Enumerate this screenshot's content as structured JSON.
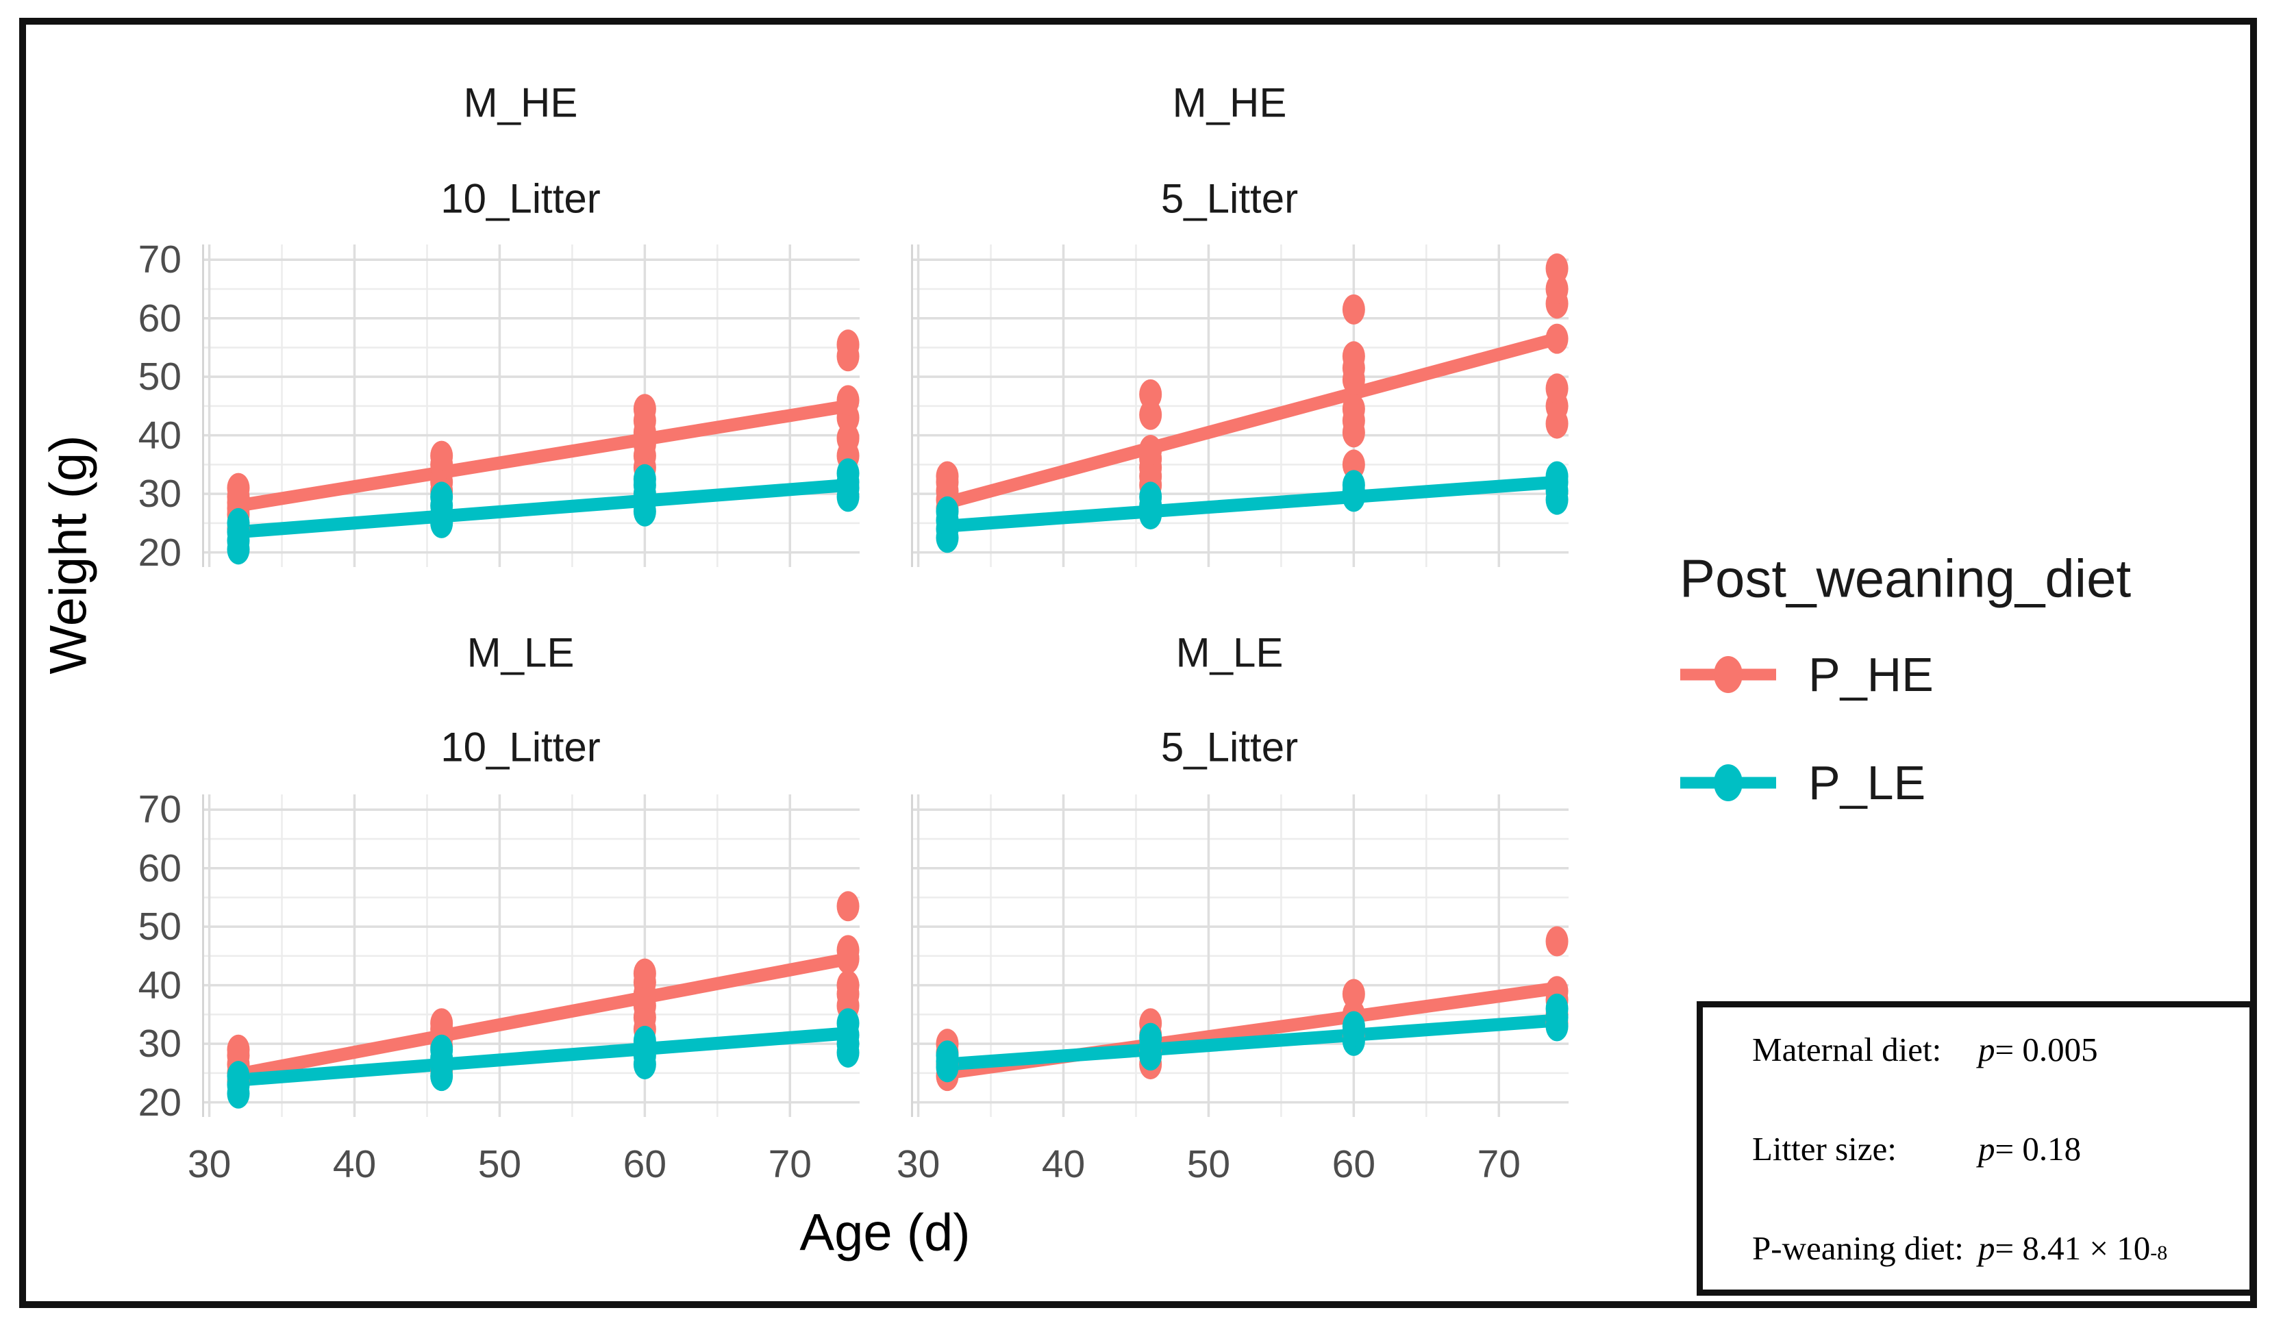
{
  "figure": {
    "x_axis_title": "Age (d)",
    "y_axis_title": "Weight (g)",
    "legend": {
      "title": "Post_weaning_diet",
      "entries": [
        {
          "label": "P_HE",
          "color": "#F8766D"
        },
        {
          "label": "P_LE",
          "color": "#00BFC4"
        }
      ]
    },
    "stats_box": {
      "lines": [
        {
          "label": "Maternal diet: ",
          "p": "p",
          "value": " = 0.005",
          "sup": ""
        },
        {
          "label": "Litter size: ",
          "p": "p",
          "value": " = 0.18",
          "sup": ""
        },
        {
          "label": "P-weaning diet: ",
          "p": "p",
          "value": " = 8.41 × 10",
          "sup": "-8"
        }
      ]
    }
  },
  "chart_data": {
    "type": "scatter",
    "xlabel": "Age (d)",
    "ylabel": "Weight (g)",
    "xlim": [
      29.5,
      74.8
    ],
    "ylim": [
      17.5,
      72.6
    ],
    "x_ticks": [
      30,
      40,
      50,
      60,
      70
    ],
    "y_ticks": [
      20,
      30,
      40,
      50,
      60,
      70
    ],
    "x_minor": [
      35,
      45,
      55,
      65
    ],
    "y_minor": [
      25,
      35,
      45,
      55,
      65
    ],
    "x_values": [
      32,
      46,
      60,
      74
    ],
    "grid": true,
    "legend_position": "right",
    "series_colors": {
      "P_HE": "#F8766D",
      "P_LE": "#00BFC4"
    },
    "panels": [
      {
        "row_label": "M_HE",
        "col_label": "10_Litter",
        "series": [
          {
            "name": "P_HE",
            "points": [
              [
                32,
                24
              ],
              [
                32,
                26.5
              ],
              [
                32,
                27.5
              ],
              [
                32,
                28.5
              ],
              [
                32,
                29.5
              ],
              [
                32,
                31
              ],
              [
                46,
                30.5
              ],
              [
                46,
                32
              ],
              [
                46,
                33.5
              ],
              [
                46,
                35
              ],
              [
                46,
                36.5
              ],
              [
                60,
                34.5
              ],
              [
                60,
                36.5
              ],
              [
                60,
                38.5
              ],
              [
                60,
                40.5
              ],
              [
                60,
                42.5
              ],
              [
                60,
                44.5
              ],
              [
                74,
                36.5
              ],
              [
                74,
                39.5
              ],
              [
                74,
                43
              ],
              [
                74,
                46
              ],
              [
                74,
                53.5
              ],
              [
                74,
                55.5
              ]
            ],
            "fit_line": [
              [
                32,
                28
              ],
              [
                74,
                45
              ]
            ]
          },
          {
            "name": "P_LE",
            "points": [
              [
                32,
                20.5
              ],
              [
                32,
                22
              ],
              [
                32,
                23.5
              ],
              [
                32,
                25
              ],
              [
                46,
                25
              ],
              [
                46,
                26.5
              ],
              [
                46,
                28
              ],
              [
                46,
                29.5
              ],
              [
                60,
                27
              ],
              [
                60,
                28.5
              ],
              [
                60,
                30
              ],
              [
                60,
                31.5
              ],
              [
                60,
                32.5
              ],
              [
                74,
                29.5
              ],
              [
                74,
                31
              ],
              [
                74,
                32
              ],
              [
                74,
                33.5
              ]
            ],
            "fit_line": [
              [
                32,
                23.5
              ],
              [
                74,
                31.5
              ]
            ]
          }
        ]
      },
      {
        "row_label": "M_HE",
        "col_label": "5_Litter",
        "series": [
          {
            "name": "P_HE",
            "points": [
              [
                32,
                27.5
              ],
              [
                32,
                29
              ],
              [
                32,
                30.5
              ],
              [
                32,
                32
              ],
              [
                32,
                33
              ],
              [
                46,
                31.5
              ],
              [
                46,
                33
              ],
              [
                46,
                34.5
              ],
              [
                46,
                36
              ],
              [
                46,
                37.5
              ],
              [
                46,
                43.5
              ],
              [
                46,
                47
              ],
              [
                60,
                35
              ],
              [
                60,
                40.5
              ],
              [
                60,
                42.5
              ],
              [
                60,
                44.5
              ],
              [
                60,
                49.5
              ],
              [
                60,
                51.5
              ],
              [
                60,
                53.5
              ],
              [
                60,
                61.5
              ],
              [
                74,
                42
              ],
              [
                74,
                45
              ],
              [
                74,
                48
              ],
              [
                74,
                56.5
              ],
              [
                74,
                62.5
              ],
              [
                74,
                65
              ],
              [
                74,
                68.5
              ]
            ],
            "fit_line": [
              [
                32,
                28.5
              ],
              [
                74,
                56.5
              ]
            ]
          },
          {
            "name": "P_LE",
            "points": [
              [
                32,
                22.5
              ],
              [
                32,
                24
              ],
              [
                32,
                25.5
              ],
              [
                32,
                27
              ],
              [
                46,
                26.5
              ],
              [
                46,
                28
              ],
              [
                46,
                29.5
              ],
              [
                60,
                29.5
              ],
              [
                60,
                30.5
              ],
              [
                60,
                31.5
              ],
              [
                74,
                29
              ],
              [
                74,
                30.5
              ],
              [
                74,
                32
              ],
              [
                74,
                33
              ]
            ],
            "fit_line": [
              [
                32,
                24.5
              ],
              [
                74,
                32
              ]
            ]
          }
        ]
      },
      {
        "row_label": "M_LE",
        "col_label": "10_Litter",
        "series": [
          {
            "name": "P_HE",
            "points": [
              [
                32,
                23.5
              ],
              [
                32,
                25
              ],
              [
                32,
                26.5
              ],
              [
                32,
                28
              ],
              [
                32,
                29
              ],
              [
                46,
                25.5
              ],
              [
                46,
                29.5
              ],
              [
                46,
                31
              ],
              [
                46,
                32.5
              ],
              [
                46,
                33.5
              ],
              [
                60,
                32.5
              ],
              [
                60,
                34.5
              ],
              [
                60,
                36.5
              ],
              [
                60,
                38.5
              ],
              [
                60,
                40.5
              ],
              [
                60,
                42
              ],
              [
                74,
                36.5
              ],
              [
                74,
                38.5
              ],
              [
                74,
                40
              ],
              [
                74,
                44.5
              ],
              [
                74,
                46
              ],
              [
                74,
                53.5
              ]
            ],
            "fit_line": [
              [
                32,
                24.8
              ],
              [
                74,
                44.5
              ]
            ]
          },
          {
            "name": "P_LE",
            "points": [
              [
                32,
                21.5
              ],
              [
                32,
                23
              ],
              [
                32,
                24.5
              ],
              [
                46,
                24.5
              ],
              [
                46,
                26
              ],
              [
                46,
                27.5
              ],
              [
                46,
                29
              ],
              [
                60,
                26.5
              ],
              [
                60,
                28
              ],
              [
                60,
                29.5
              ],
              [
                60,
                30.5
              ],
              [
                74,
                28.5
              ],
              [
                74,
                30
              ],
              [
                74,
                31.5
              ],
              [
                74,
                33.5
              ]
            ],
            "fit_line": [
              [
                32,
                23.8
              ],
              [
                74,
                31.8
              ]
            ]
          }
        ]
      },
      {
        "row_label": "M_LE",
        "col_label": "5_Litter",
        "series": [
          {
            "name": "P_HE",
            "points": [
              [
                32,
                24.5
              ],
              [
                32,
                26.5
              ],
              [
                32,
                28.5
              ],
              [
                32,
                30
              ],
              [
                46,
                26.5
              ],
              [
                46,
                29
              ],
              [
                46,
                31.5
              ],
              [
                46,
                33.5
              ],
              [
                60,
                31.5
              ],
              [
                60,
                33
              ],
              [
                60,
                35
              ],
              [
                60,
                38.5
              ],
              [
                74,
                33.5
              ],
              [
                74,
                35
              ],
              [
                74,
                37.5
              ],
              [
                74,
                39
              ],
              [
                74,
                47.5
              ]
            ],
            "fit_line": [
              [
                32,
                25
              ],
              [
                74,
                39.5
              ]
            ]
          },
          {
            "name": "P_LE",
            "points": [
              [
                32,
                26
              ],
              [
                32,
                27
              ],
              [
                32,
                28
              ],
              [
                46,
                28
              ],
              [
                46,
                29.5
              ],
              [
                46,
                31
              ],
              [
                60,
                30.5
              ],
              [
                60,
                32
              ],
              [
                60,
                33
              ],
              [
                74,
                33
              ],
              [
                74,
                34.5
              ],
              [
                74,
                36
              ]
            ],
            "fit_line": [
              [
                32,
                26.5
              ],
              [
                74,
                34
              ]
            ]
          }
        ]
      }
    ]
  }
}
